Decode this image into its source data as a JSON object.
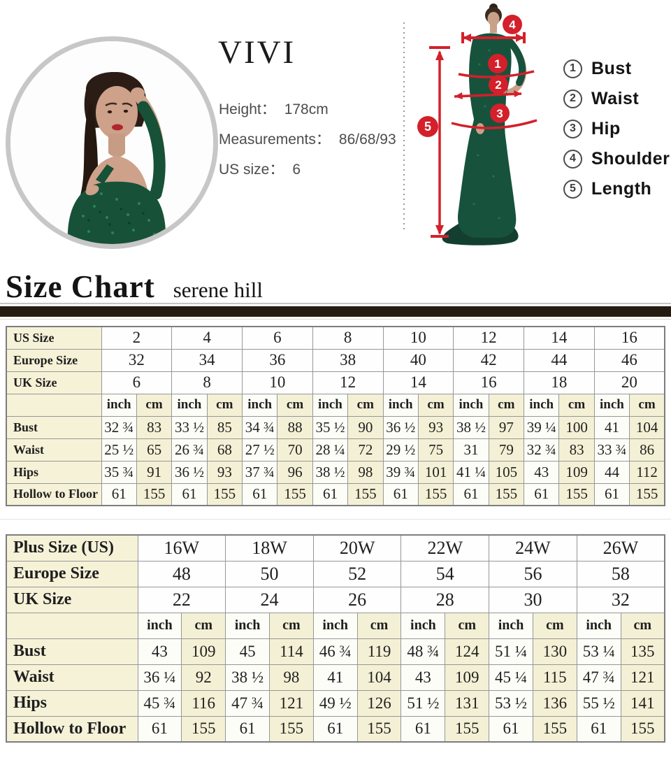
{
  "colors": {
    "accent_red": "#d3202b",
    "dress_green": "#17523d",
    "table_cream": "#f4f0d5",
    "divider_brown": "#251b12",
    "ring_gray": "#c7c7c7"
  },
  "profile": {
    "brand": "VIVI",
    "specs": [
      {
        "label": "Height：",
        "value": "178cm"
      },
      {
        "label": "Measurements：",
        "value": "86/68/93"
      },
      {
        "label": "US size：",
        "value": "6"
      }
    ]
  },
  "diagram": {
    "legend": [
      {
        "num": "1",
        "label": "Bust"
      },
      {
        "num": "2",
        "label": "Waist"
      },
      {
        "num": "3",
        "label": "Hip"
      },
      {
        "num": "4",
        "label": "Shoulder"
      },
      {
        "num": "5",
        "label": "Length"
      }
    ]
  },
  "section": {
    "title": "Size Chart",
    "subtitle": "serene hill"
  },
  "chart_data": [
    {
      "type": "table",
      "title": "Standard size chart",
      "units": [
        "inch",
        "cm"
      ],
      "size_rows": [
        {
          "label": "US Size",
          "values": [
            "2",
            "4",
            "6",
            "8",
            "10",
            "12",
            "14",
            "16"
          ]
        },
        {
          "label": "Europe Size",
          "values": [
            "32",
            "34",
            "36",
            "38",
            "40",
            "42",
            "44",
            "46"
          ]
        },
        {
          "label": "UK Size",
          "values": [
            "6",
            "8",
            "10",
            "12",
            "14",
            "16",
            "18",
            "20"
          ]
        }
      ],
      "data_rows": [
        {
          "label": "Bust",
          "values": [
            "32 ¾",
            "83",
            "33 ½",
            "85",
            "34 ¾",
            "88",
            "35 ½",
            "90",
            "36 ½",
            "93",
            "38 ½",
            "97",
            "39 ¼",
            "100",
            "41",
            "104"
          ]
        },
        {
          "label": "Waist",
          "values": [
            "25 ½",
            "65",
            "26 ¾",
            "68",
            "27 ½",
            "70",
            "28 ¼",
            "72",
            "29 ½",
            "75",
            "31",
            "79",
            "32 ¾",
            "83",
            "33 ¾",
            "86"
          ]
        },
        {
          "label": "Hips",
          "values": [
            "35 ¾",
            "91",
            "36 ½",
            "93",
            "37 ¾",
            "96",
            "38 ½",
            "98",
            "39 ¾",
            "101",
            "41 ¼",
            "105",
            "43",
            "109",
            "44",
            "112"
          ]
        },
        {
          "label": "Hollow to Floor",
          "values": [
            "61",
            "155",
            "61",
            "155",
            "61",
            "155",
            "61",
            "155",
            "61",
            "155",
            "61",
            "155",
            "61",
            "155",
            "61",
            "155"
          ]
        }
      ]
    },
    {
      "type": "table",
      "title": "Plus size chart",
      "units": [
        "inch",
        "cm"
      ],
      "size_rows": [
        {
          "label": "Plus Size (US)",
          "values": [
            "16W",
            "18W",
            "20W",
            "22W",
            "24W",
            "26W"
          ]
        },
        {
          "label": "Europe Size",
          "values": [
            "48",
            "50",
            "52",
            "54",
            "56",
            "58"
          ]
        },
        {
          "label": "UK Size",
          "values": [
            "22",
            "24",
            "26",
            "28",
            "30",
            "32"
          ]
        }
      ],
      "data_rows": [
        {
          "label": "Bust",
          "values": [
            "43",
            "109",
            "45",
            "114",
            "46 ¾",
            "119",
            "48 ¾",
            "124",
            "51 ¼",
            "130",
            "53 ¼",
            "135"
          ]
        },
        {
          "label": "Waist",
          "values": [
            "36 ¼",
            "92",
            "38 ½",
            "98",
            "41",
            "104",
            "43",
            "109",
            "45 ¼",
            "115",
            "47 ¾",
            "121"
          ]
        },
        {
          "label": "Hips",
          "values": [
            "45 ¾",
            "116",
            "47 ¾",
            "121",
            "49 ½",
            "126",
            "51 ½",
            "131",
            "53 ½",
            "136",
            "55 ½",
            "141"
          ]
        },
        {
          "label": "Hollow to Floor",
          "values": [
            "61",
            "155",
            "61",
            "155",
            "61",
            "155",
            "61",
            "155",
            "61",
            "155",
            "61",
            "155"
          ]
        }
      ]
    }
  ]
}
